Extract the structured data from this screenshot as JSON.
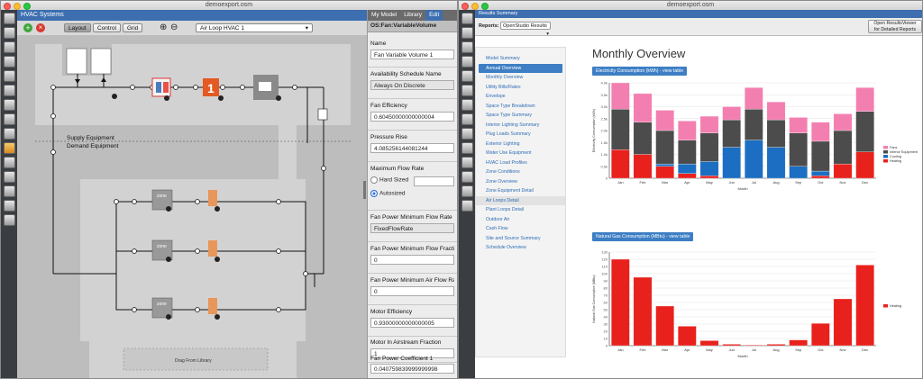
{
  "app": {
    "left_window_title": "demoexport.osm",
    "right_window_title": "demoexport.osm",
    "results_title": "Results Summary"
  },
  "hvac": {
    "header": "HVAC Systems",
    "view_buttons": [
      "Layout",
      "Control",
      "Grid"
    ],
    "loop_select": "Air Loop HVAC 1",
    "labels": {
      "supply": "Supply Equipment",
      "demand": "Demand Equipment",
      "drag": "Drag From Library",
      "zone": "zone"
    }
  },
  "inspector": {
    "tabs": [
      "My Model",
      "Library",
      "Edit"
    ],
    "object_type": "OS:Fan:VariableVolume",
    "fields": [
      {
        "label": "Name",
        "value": "Fan Variable Volume 1"
      },
      {
        "label": "Availability Schedule Name",
        "value": "Always On Discrete"
      },
      {
        "label": "Fan Efficiency",
        "value": "0.60450000000000004"
      },
      {
        "label": "Pressure Rise",
        "value": "4.085256144081244"
      },
      {
        "label": "Maximum Flow Rate",
        "option_hard": "Hard Sized",
        "option_auto": "Autosized"
      },
      {
        "label": "Fan Power Minimum Flow Rate Input",
        "value": "FixedFlowRate"
      },
      {
        "label": "Fan Power Minimum Flow Fraction",
        "value": "0"
      },
      {
        "label": "Fan Power Minimum Air Flow Rate",
        "value": "0"
      },
      {
        "label": "Motor Efficiency",
        "value": "0.93000000000000005"
      },
      {
        "label": "Motor In Airstream Fraction",
        "value": "1"
      },
      {
        "label": "Fan Power Coefficient 1",
        "value": "0.040759839999999998"
      }
    ]
  },
  "results": {
    "reports_label": "Reports:",
    "reports_select": "OpenStudio Results",
    "open_button_line1": "Open ResultsViewer",
    "open_button_line2": "for Detailed Reports",
    "page_title": "Monthly Overview",
    "nav": [
      "Model Summary",
      "Annual Overview",
      "Monthly Overview",
      "Utility Bills/Rates",
      "Envelope",
      "Space Type Breakdown",
      "Space Type Summary",
      "Interior Lighting Summary",
      "Plug Loads Summary",
      "Exterior Lighting",
      "Water Use Equipment",
      "HVAC Load Profiles",
      "Zone Conditions",
      "Zone Overview",
      "Zone Equipment Detail",
      "Air Loops Detail",
      "Plant Loops Detail",
      "Outdoor Air",
      "Cash Flow",
      "Site and Source Summary",
      "Schedule Overview"
    ],
    "nav_active": 1,
    "nav_hover": 15
  },
  "colors": {
    "fans": "#f37fb0",
    "interior_equipment": "#4c4c4c",
    "cooling": "#1b6ec2",
    "heating": "#e8211c",
    "accent": "#3d7ec4"
  },
  "chart_data": [
    {
      "type": "bar",
      "stacked": true,
      "title": "Electricity Consumption (kWh) - view table",
      "xlabel": "Month",
      "ylabel": "Electricity Consumption (kWh)",
      "ylim": [
        0,
        4000
      ],
      "y_ticks": [
        "0",
        "0.5k",
        "1.0k",
        "1.5k",
        "2.0k",
        "2.5k",
        "3.0k",
        "3.5k",
        "4.0k"
      ],
      "categories": [
        "Jan",
        "Feb",
        "Mar",
        "Apr",
        "May",
        "Jun",
        "Jul",
        "Aug",
        "Sep",
        "Oct",
        "Nov",
        "Dec"
      ],
      "legend_position": "right",
      "series": [
        {
          "name": "Heating",
          "values": [
            1200,
            1000,
            500,
            200,
            100,
            0,
            0,
            0,
            0,
            100,
            600,
            1100
          ]
        },
        {
          "name": "Cooling",
          "values": [
            0,
            0,
            100,
            400,
            600,
            1300,
            1600,
            1300,
            500,
            200,
            0,
            0
          ]
        },
        {
          "name": "Interior Equipment",
          "values": [
            1700,
            1350,
            1400,
            1000,
            1200,
            1150,
            1300,
            1150,
            1400,
            1250,
            1400,
            1700
          ]
        },
        {
          "name": "Fans",
          "values": [
            1100,
            1200,
            850,
            800,
            700,
            550,
            900,
            750,
            650,
            800,
            700,
            1000
          ]
        }
      ]
    },
    {
      "type": "bar",
      "title": "Natural Gas Consumption (MBtu) - view table",
      "xlabel": "Month",
      "ylabel": "Natural Gas Consumption (MBtu)",
      "ylim": [
        0,
        130
      ],
      "y_ticks": [
        "0",
        "10",
        "20",
        "30",
        "40",
        "50",
        "60",
        "70",
        "80",
        "90",
        "100",
        "110",
        "120",
        "130"
      ],
      "categories": [
        "Jan",
        "Feb",
        "Mar",
        "Apr",
        "May",
        "Jun",
        "Jul",
        "Aug",
        "Sep",
        "Oct",
        "Nov",
        "Dec"
      ],
      "legend_position": "right",
      "series": [
        {
          "name": "Heating",
          "values": [
            120,
            95,
            55,
            27,
            7,
            2,
            1,
            2,
            8,
            31,
            65,
            112
          ]
        }
      ]
    }
  ]
}
